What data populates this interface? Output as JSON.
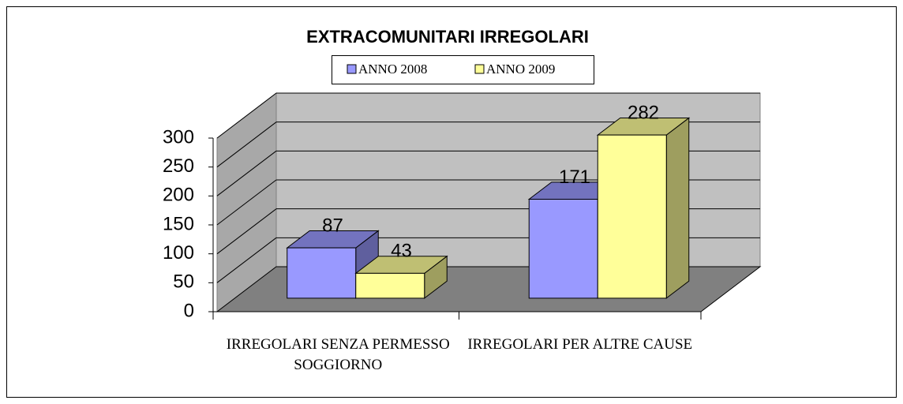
{
  "chart_data": {
    "type": "bar3d",
    "title": "EXTRACOMUNITARI IRREGOLARI",
    "categories": [
      "IRREGOLARI SENZA PERMESSO SOGGIORNO",
      "IRREGOLARI PER ALTRE CAUSE"
    ],
    "series": [
      {
        "name": "ANNO 2008",
        "color": "#9999ff",
        "values": [
          87,
          171
        ]
      },
      {
        "name": "ANNO 2009",
        "color": "#ffff99",
        "values": [
          43,
          282
        ]
      }
    ],
    "ylim": [
      0,
      300
    ],
    "yticks": [
      0,
      50,
      100,
      150,
      200,
      250,
      300
    ],
    "grid": true,
    "legend": "top"
  }
}
